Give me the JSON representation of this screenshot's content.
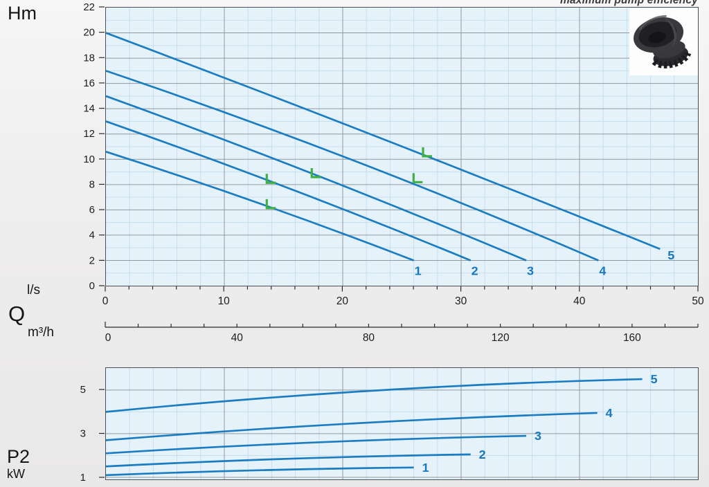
{
  "labels": {
    "head_unit": "Hm",
    "flow_unit_primary": "l/s",
    "flow_symbol": "Q",
    "flow_unit_secondary": "m³/h",
    "power_symbol": "P2",
    "power_unit": "kW"
  },
  "colors": {
    "curve": "#1a7cc1",
    "curve_label": "#1878be",
    "efficiency_marker": "#3fb044",
    "plot_background": "#e6f2fa",
    "grid_minor": "#c5deee",
    "grid_major": "#8f989e",
    "frame": "#4a4e52",
    "axis_text": "#1c1c1c"
  },
  "chart_data": [
    {
      "id": "head_flow",
      "type": "line",
      "title": "maximum pump efficiency",
      "ylabel": "Hm",
      "xlabel": "Q",
      "x_unit_primary": "l/s",
      "x_unit_secondary": "m³/h",
      "x_range_ls": [
        0,
        50
      ],
      "x_minor_step_ls": 2,
      "x_major_step_ls": 10,
      "x_tick_labels_ls": [
        "0",
        "10",
        "20",
        "30",
        "40",
        "50"
      ],
      "x_range_m3h": [
        0,
        180
      ],
      "x_tick_step_m3h": 10,
      "x_tick_labels_m3h": [
        "0",
        "40",
        "80",
        "120",
        "160"
      ],
      "y_range": [
        0,
        22
      ],
      "y_minor_step": 1,
      "y_major_step": 2,
      "y_tick_labels": [
        "22",
        "20",
        "18",
        "16",
        "14",
        "12",
        "10",
        "8",
        "6",
        "4",
        "2",
        "0"
      ],
      "grid": true,
      "legend": "curve numbers 1-5 at line ends",
      "bep_note": "green L markers = maximum pump efficiency points",
      "series": [
        {
          "name": "1",
          "points": [
            [
              0,
              10.6
            ],
            [
              26.0,
              2.0
            ]
          ],
          "bow": 0.4,
          "bep": [
            13.7,
            6.25
          ]
        },
        {
          "name": "2",
          "points": [
            [
              0,
              13.0
            ],
            [
              30.8,
              2.0
            ]
          ],
          "bow": 0.45,
          "bep": [
            13.7,
            8.25
          ]
        },
        {
          "name": "3",
          "points": [
            [
              0,
              15.0
            ],
            [
              35.5,
              2.0
            ]
          ],
          "bow": 0.5,
          "bep": [
            17.5,
            8.7
          ]
        },
        {
          "name": "4",
          "points": [
            [
              0,
              17.0
            ],
            [
              41.6,
              2.0
            ]
          ],
          "bow": 0.9,
          "bep": [
            26.1,
            8.3
          ]
        },
        {
          "name": "5",
          "points": [
            [
              0,
              20.0
            ],
            [
              46.8,
              2.9
            ]
          ],
          "bow": 0.3,
          "bep": [
            26.9,
            10.35
          ]
        }
      ]
    },
    {
      "id": "power_flow",
      "type": "line",
      "ylabel": "P2 kW",
      "y_range": [
        0.9,
        6.0
      ],
      "y_tick_values": [
        5,
        3,
        1
      ],
      "y_tick_labels": [
        "5",
        "3",
        "1"
      ],
      "y_minor_values": [
        2,
        4
      ],
      "grid": true,
      "series": [
        {
          "name": "1",
          "points": [
            [
              0,
              1.1
            ],
            [
              26.0,
              1.45
            ]
          ],
          "bow": 0.1
        },
        {
          "name": "2",
          "points": [
            [
              0,
              1.5
            ],
            [
              30.8,
              2.05
            ]
          ],
          "bow": 0.15
        },
        {
          "name": "3",
          "points": [
            [
              0,
              2.1
            ],
            [
              35.5,
              2.9
            ]
          ],
          "bow": 0.2
        },
        {
          "name": "4",
          "points": [
            [
              0,
              2.7
            ],
            [
              41.5,
              3.95
            ]
          ],
          "bow": 0.28
        },
        {
          "name": "5",
          "points": [
            [
              0,
              4.0
            ],
            [
              45.3,
              5.5
            ]
          ],
          "bow": 0.45
        }
      ]
    }
  ]
}
